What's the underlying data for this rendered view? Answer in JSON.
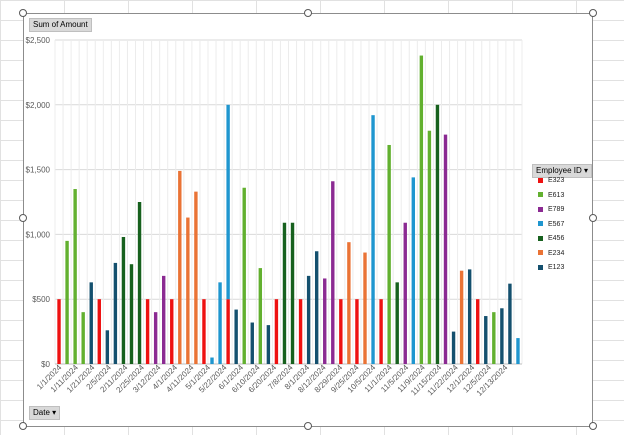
{
  "pivot": {
    "values_button": "Sum of Amount",
    "legend_button": "Employee ID",
    "axis_button": "Date",
    "dropdown_glyph": "▾"
  },
  "colors": {
    "E323": "#ee1111",
    "E613": "#62b02f",
    "E789": "#8b2a92",
    "E567": "#1f96cf",
    "E456": "#17611e",
    "E234": "#ea7335",
    "E123": "#14506e"
  },
  "chart_data": {
    "type": "bar",
    "stacked": true,
    "ylim": [
      0,
      2500
    ],
    "yticks": [
      0,
      500,
      1000,
      1500,
      2000,
      2500
    ],
    "ytick_labels": [
      "$0",
      "$500",
      "$1,000",
      "$1,500",
      "$2,000",
      "$2,500"
    ],
    "grid": true,
    "legend_position": "right",
    "legend": [
      "E323",
      "E613",
      "E789",
      "E567",
      "E456",
      "E234",
      "E123"
    ],
    "x_tick_labels": [
      "1/1/2024",
      "1/11/2024",
      "1/21/2024",
      "2/5/2024",
      "2/11/2024",
      "2/25/2024",
      "3/12/2024",
      "4/1/2024",
      "4/11/2024",
      "5/1/2024",
      "5/22/2024",
      "6/1/2024",
      "6/10/2024",
      "6/20/2024",
      "7/8/2024",
      "8/1/2024",
      "8/12/2024",
      "8/29/2024",
      "9/25/2024",
      "10/5/2024",
      "11/1/2024",
      "11/5/2024",
      "11/9/2024",
      "11/15/2024",
      "11/22/2024",
      "12/1/2024",
      "12/5/2024",
      "12/13/2024"
    ],
    "bars": [
      {
        "E323": 500
      },
      {
        "E613": 950
      },
      {
        "E613": 1350
      },
      {
        "E613": 400
      },
      {
        "E123": 630
      },
      {
        "E323": 500
      },
      {
        "E123": 260
      },
      {
        "E123": 780
      },
      {
        "E456": 980
      },
      {
        "E456": 770
      },
      {
        "E456": 1250
      },
      {
        "E323": 500
      },
      {
        "E789": 400
      },
      {
        "E789": 680
      },
      {
        "E323": 500
      },
      {
        "E234": 1490
      },
      {
        "E234": 1130
      },
      {
        "E234": 1330
      },
      {
        "E323": 500
      },
      {
        "E567": 50
      },
      {
        "E567": 630
      },
      {
        "E567": 1500,
        "E323": 500
      },
      {
        "E123": 420
      },
      {
        "E613": 1360
      },
      {
        "E123": 320
      },
      {
        "E613": 740
      },
      {
        "E123": 300
      },
      {
        "E323": 500
      },
      {
        "E456": 1090
      },
      {
        "E456": 1090
      },
      {
        "E323": 500
      },
      {
        "E123": 680
      },
      {
        "E123": 870
      },
      {
        "E789": 660
      },
      {
        "E789": 1410
      },
      {
        "E323": 500
      },
      {
        "E234": 940
      },
      {
        "E323": 500
      },
      {
        "E234": 860
      },
      {
        "E567": 1920
      },
      {
        "E323": 500
      },
      {
        "E613": 1690
      },
      {
        "E456": 630
      },
      {
        "E789": 1090
      },
      {
        "E567": 1440
      },
      {
        "E613": 2380
      },
      {
        "E613": 1800
      },
      {
        "E456": 2000
      },
      {
        "E789": 1770
      },
      {
        "E123": 250
      },
      {
        "E234": 720
      },
      {
        "E123": 730
      },
      {
        "E323": 500
      },
      {
        "E123": 370
      },
      {
        "E613": 400
      },
      {
        "E123": 430
      },
      {
        "E123": 620
      },
      {
        "E567": 200
      }
    ]
  }
}
